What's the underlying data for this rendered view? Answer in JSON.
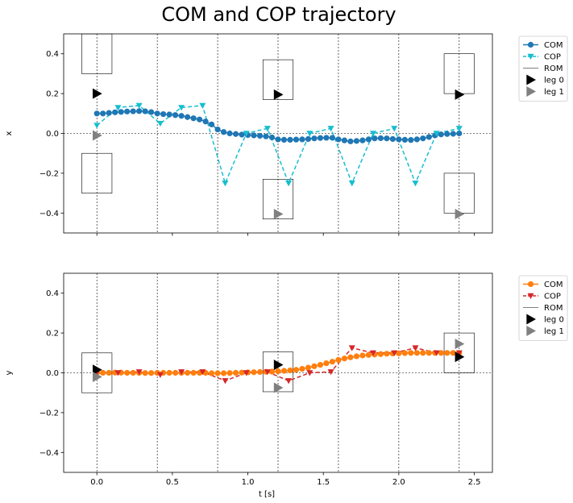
{
  "chart_data": {
    "type": "line",
    "title": "COM and COP trajectory",
    "shared_x": {
      "xlabel": "t [s]",
      "xlim": [
        -0.22,
        2.62
      ],
      "xticks": [
        0.0,
        0.5,
        1.0,
        1.5,
        2.0,
        2.5
      ],
      "xtick_labels": [
        "0.0",
        "0.5",
        "1.0",
        "1.5",
        "2.0",
        "2.5"
      ],
      "vlines": [
        0.0,
        0.4,
        0.8,
        1.2,
        1.6,
        2.0,
        2.4
      ]
    },
    "panels": [
      {
        "id": "x",
        "ylabel": "x",
        "ylim": [
          -0.5,
          0.5
        ],
        "yticks": [
          -0.4,
          -0.2,
          0.0,
          0.2,
          0.4
        ],
        "ytick_labels": [
          "−0.4",
          "−0.2",
          "0.0",
          "0.2",
          "0.4"
        ],
        "hline": 0.0,
        "legend": {
          "placement": "outside-top-right",
          "entries": [
            {
              "label": "COM",
              "kind": "line-marker",
              "color": "#1f77b4",
              "marker": "circle"
            },
            {
              "label": "COP",
              "kind": "dashed-marker",
              "color": "#17becf",
              "marker": "triangle-down"
            },
            {
              "label": "ROM",
              "kind": "line",
              "color": "#000000"
            },
            {
              "label": "leg 0",
              "kind": "marker",
              "color": "#000000",
              "marker": "triangle-right"
            },
            {
              "label": "leg 1",
              "kind": "marker",
              "color": "#808080",
              "marker": "triangle-right"
            }
          ]
        },
        "series": [
          {
            "name": "COM",
            "color": "#1f77b4",
            "style": "solid",
            "marker": "circle",
            "x": [
              0.0,
              0.04,
              0.08,
              0.12,
              0.16,
              0.2,
              0.24,
              0.28,
              0.32,
              0.36,
              0.4,
              0.44,
              0.48,
              0.52,
              0.56,
              0.6,
              0.64,
              0.68,
              0.72,
              0.76,
              0.8,
              0.84,
              0.88,
              0.92,
              0.96,
              1.0,
              1.04,
              1.08,
              1.12,
              1.16,
              1.2,
              1.24,
              1.28,
              1.32,
              1.36,
              1.4,
              1.44,
              1.48,
              1.52,
              1.56,
              1.6,
              1.64,
              1.68,
              1.72,
              1.76,
              1.8,
              1.84,
              1.88,
              1.92,
              1.96,
              2.0,
              2.04,
              2.08,
              2.12,
              2.16,
              2.2,
              2.24,
              2.28,
              2.32,
              2.36,
              2.4
            ],
            "values": [
              0.1,
              0.1,
              0.103,
              0.106,
              0.108,
              0.11,
              0.111,
              0.112,
              0.111,
              0.107,
              0.1,
              0.097,
              0.095,
              0.092,
              0.088,
              0.082,
              0.076,
              0.07,
              0.06,
              0.045,
              0.02,
              0.007,
              0.0,
              -0.003,
              -0.006,
              -0.008,
              -0.01,
              -0.012,
              -0.015,
              -0.02,
              -0.03,
              -0.032,
              -0.032,
              -0.031,
              -0.03,
              -0.028,
              -0.025,
              -0.023,
              -0.022,
              -0.022,
              -0.03,
              -0.035,
              -0.04,
              -0.038,
              -0.035,
              -0.03,
              -0.025,
              -0.024,
              -0.025,
              -0.028,
              -0.03,
              -0.032,
              -0.033,
              -0.03,
              -0.025,
              -0.018,
              -0.01,
              -0.005,
              -0.003,
              -0.002,
              0.0
            ]
          },
          {
            "name": "COP",
            "color": "#17becf",
            "style": "dashed",
            "marker": "triangle-down",
            "x": [
              0.0,
              0.14,
              0.28,
              0.42,
              0.56,
              0.7,
              0.85,
              0.99,
              1.13,
              1.27,
              1.41,
              1.55,
              1.69,
              1.83,
              1.97,
              2.11,
              2.25,
              2.4
            ],
            "values": [
              0.04,
              0.13,
              0.14,
              0.05,
              0.13,
              0.14,
              -0.25,
              0.0,
              0.025,
              -0.25,
              0.0,
              0.025,
              -0.25,
              0.0,
              0.025,
              -0.25,
              0.0,
              0.025
            ]
          }
        ],
        "rom": [
          {
            "x": [
              -0.1,
              0.1
            ],
            "y": [
              0.3,
              0.5
            ]
          },
          {
            "x": [
              -0.1,
              0.1
            ],
            "y": [
              -0.3,
              -0.1
            ]
          },
          {
            "x": [
              1.1,
              1.3
            ],
            "y": [
              0.17,
              0.37
            ]
          },
          {
            "x": [
              1.1,
              1.3
            ],
            "y": [
              -0.43,
              -0.23
            ]
          },
          {
            "x": [
              2.3,
              2.5
            ],
            "y": [
              0.2,
              0.4
            ]
          },
          {
            "x": [
              2.3,
              2.5
            ],
            "y": [
              -0.4,
              -0.2
            ]
          }
        ],
        "legs": [
          {
            "name": "leg 0",
            "color": "#000000",
            "points": [
              {
                "x": 0.0,
                "y": 0.2
              },
              {
                "x": 1.2,
                "y": 0.195
              },
              {
                "x": 2.4,
                "y": 0.195
              }
            ]
          },
          {
            "name": "leg 1",
            "color": "#808080",
            "points": [
              {
                "x": 0.0,
                "y": -0.01
              },
              {
                "x": 1.2,
                "y": -0.405
              },
              {
                "x": 2.4,
                "y": -0.405
              }
            ]
          }
        ]
      },
      {
        "id": "y",
        "ylabel": "y",
        "ylim": [
          -0.5,
          0.5
        ],
        "yticks": [
          -0.4,
          -0.2,
          0.0,
          0.2,
          0.4
        ],
        "ytick_labels": [
          "−0.4",
          "−0.2",
          "0.0",
          "0.2",
          "0.4"
        ],
        "hline": 0.0,
        "legend": {
          "placement": "outside-top-right",
          "entries": [
            {
              "label": "COM",
              "kind": "line-marker",
              "color": "#ff7f0e",
              "marker": "circle"
            },
            {
              "label": "COP",
              "kind": "dashed-marker",
              "color": "#d62728",
              "marker": "triangle-down"
            },
            {
              "label": "ROM",
              "kind": "line",
              "color": "#000000"
            },
            {
              "label": "leg 0",
              "kind": "marker",
              "color": "#000000",
              "marker": "triangle-right"
            },
            {
              "label": "leg 1",
              "kind": "marker",
              "color": "#808080",
              "marker": "triangle-right"
            }
          ]
        },
        "series": [
          {
            "name": "COM",
            "color": "#ff7f0e",
            "style": "solid",
            "marker": "circle",
            "x": [
              0.0,
              0.04,
              0.08,
              0.12,
              0.16,
              0.2,
              0.24,
              0.28,
              0.32,
              0.36,
              0.4,
              0.44,
              0.48,
              0.52,
              0.56,
              0.6,
              0.64,
              0.68,
              0.72,
              0.76,
              0.8,
              0.84,
              0.88,
              0.92,
              0.96,
              1.0,
              1.04,
              1.08,
              1.12,
              1.16,
              1.2,
              1.24,
              1.28,
              1.32,
              1.36,
              1.4,
              1.44,
              1.48,
              1.52,
              1.56,
              1.6,
              1.64,
              1.68,
              1.72,
              1.76,
              1.8,
              1.84,
              1.88,
              1.92,
              1.96,
              2.0,
              2.04,
              2.08,
              2.12,
              2.16,
              2.2,
              2.24,
              2.28,
              2.32,
              2.36,
              2.4
            ],
            "values": [
              0.0,
              0.0,
              0.0,
              0.001,
              0.001,
              0.0,
              0.0,
              0.0,
              -0.001,
              -0.001,
              0.0,
              0.0,
              0.0,
              0.0,
              0.0,
              0.0,
              0.0,
              0.0,
              0.0,
              -0.002,
              -0.002,
              -0.002,
              -0.001,
              0.0,
              0.001,
              0.002,
              0.003,
              0.004,
              0.005,
              0.006,
              0.008,
              0.01,
              0.012,
              0.015,
              0.02,
              0.026,
              0.033,
              0.04,
              0.048,
              0.056,
              0.065,
              0.072,
              0.078,
              0.083,
              0.087,
              0.09,
              0.092,
              0.094,
              0.096,
              0.097,
              0.098,
              0.099,
              0.1,
              0.1,
              0.1,
              0.1,
              0.1,
              0.1,
              0.1,
              0.1,
              0.1
            ]
          },
          {
            "name": "COP",
            "color": "#d62728",
            "style": "dashed",
            "marker": "triangle-down",
            "x": [
              0.0,
              0.14,
              0.28,
              0.42,
              0.56,
              0.7,
              0.85,
              0.99,
              1.13,
              1.27,
              1.41,
              1.55,
              1.69,
              1.83,
              1.97,
              2.11,
              2.25,
              2.4
            ],
            "values": [
              0.0,
              0.0,
              0.005,
              -0.01,
              0.005,
              0.005,
              -0.04,
              0.0,
              0.005,
              -0.04,
              0.0,
              0.005,
              0.125,
              0.1,
              0.1,
              0.125,
              0.1,
              0.1
            ]
          }
        ],
        "rom": [
          {
            "x": [
              -0.1,
              0.1
            ],
            "y": [
              -0.1,
              0.1
            ]
          },
          {
            "x": [
              1.1,
              1.3
            ],
            "y": [
              -0.095,
              0.105
            ]
          },
          {
            "x": [
              2.3,
              2.5
            ],
            "y": [
              0.0,
              0.2
            ]
          }
        ],
        "legs": [
          {
            "name": "leg 0",
            "color": "#000000",
            "points": [
              {
                "x": 0.0,
                "y": 0.015
              },
              {
                "x": 1.2,
                "y": 0.04
              },
              {
                "x": 2.4,
                "y": 0.08
              }
            ]
          },
          {
            "name": "leg 1",
            "color": "#808080",
            "points": [
              {
                "x": 0.0,
                "y": -0.02
              },
              {
                "x": 1.2,
                "y": -0.075
              },
              {
                "x": 2.4,
                "y": 0.145
              }
            ]
          }
        ]
      }
    ]
  }
}
